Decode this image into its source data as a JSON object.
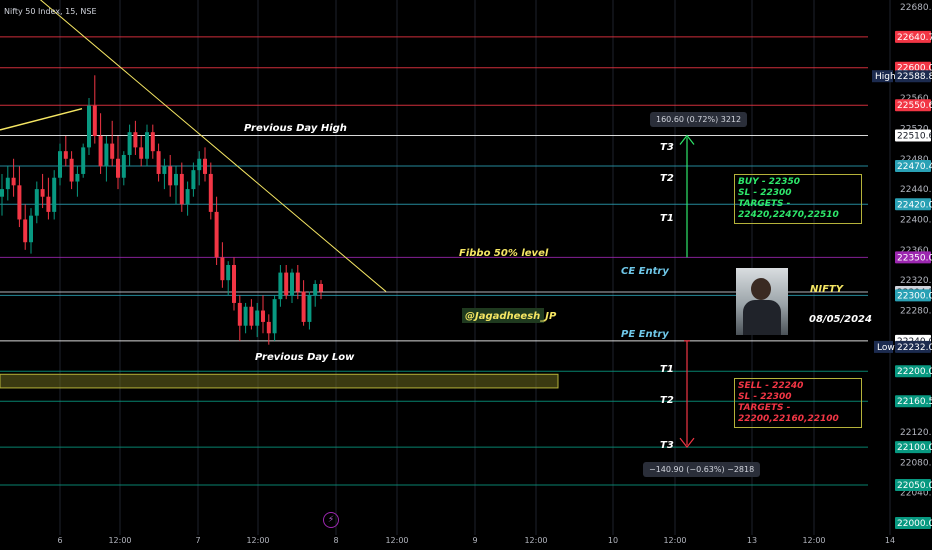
{
  "chart_data": {
    "type": "candlestick",
    "title": "Nifty 50 Index, 15, NSE",
    "y_ticks": [
      "22680.00",
      "22560.00",
      "22520.00",
      "22480.00",
      "22440.00",
      "22400.00",
      "22360.00",
      "22320.00",
      "22280.00",
      "22240.00",
      "22120.00",
      "22080.00",
      "22040.00"
    ],
    "x_ticks": [
      "6",
      "12:00",
      "7",
      "12:00",
      "8",
      "12:00",
      "9",
      "12:00",
      "10",
      "12:00",
      "13",
      "12:00",
      "14"
    ],
    "level_tags": [
      {
        "label": "22640.70",
        "value": 22640.7,
        "color": "#f23645",
        "style": "solid"
      },
      {
        "label": "22600.00",
        "value": 22600,
        "color": "#f23645",
        "style": "solid"
      },
      {
        "label": "22588.80",
        "value": 22588.8,
        "color": "#1c2b4f",
        "style": "none"
      },
      {
        "label": "22550.60",
        "value": 22550.6,
        "color": "#f23645",
        "style": "solid"
      },
      {
        "label": "22510.60",
        "value": 22510.6,
        "color": "#ffffff",
        "style": "solid"
      },
      {
        "label": "22470.40",
        "value": 22470.4,
        "color": "#2aa1b5",
        "style": "solid"
      },
      {
        "label": "22420.00",
        "value": 22420,
        "color": "#2aa1b5",
        "style": "solid"
      },
      {
        "label": "22350.00",
        "value": 22350,
        "color": "#9c27b0",
        "style": "solid"
      },
      {
        "label": "22304.50",
        "value": 22304.5,
        "color": "#d1d4dc",
        "style": "solid"
      },
      {
        "label": "22300.00",
        "value": 22300,
        "color": "#2aa1b5",
        "style": "solid"
      },
      {
        "label": "22240.00",
        "value": 22240,
        "color": "#ffffff",
        "style": "solid"
      },
      {
        "label": "22232.05",
        "value": 22232.05,
        "color": "#1c2b4f",
        "style": "none"
      },
      {
        "label": "22200.00",
        "value": 22200,
        "color": "#089981",
        "style": "solid"
      },
      {
        "label": "22160.50",
        "value": 22160.5,
        "color": "#089981",
        "style": "solid"
      },
      {
        "label": "22100.05",
        "value": 22100.05,
        "color": "#089981",
        "style": "solid"
      },
      {
        "label": "22050.00",
        "value": 22050,
        "color": "#089981",
        "style": "solid"
      },
      {
        "label": "22000.00",
        "value": 22000,
        "color": "#089981",
        "style": "none"
      }
    ],
    "high_label": "High",
    "low_label": "Low",
    "candles": [
      [
        22430,
        22460,
        22405,
        22440
      ],
      [
        22440,
        22470,
        22425,
        22455
      ],
      [
        22455,
        22480,
        22430,
        22445
      ],
      [
        22445,
        22470,
        22390,
        22400
      ],
      [
        22400,
        22420,
        22360,
        22370
      ],
      [
        22370,
        22415,
        22355,
        22405
      ],
      [
        22405,
        22450,
        22395,
        22440
      ],
      [
        22440,
        22460,
        22415,
        22430
      ],
      [
        22430,
        22455,
        22400,
        22410
      ],
      [
        22410,
        22465,
        22400,
        22455
      ],
      [
        22455,
        22500,
        22445,
        22490
      ],
      [
        22490,
        22510,
        22470,
        22480
      ],
      [
        22480,
        22490,
        22440,
        22450
      ],
      [
        22450,
        22470,
        22430,
        22460
      ],
      [
        22460,
        22500,
        22455,
        22495
      ],
      [
        22495,
        22560,
        22485,
        22550
      ],
      [
        22550,
        22590,
        22500,
        22510
      ],
      [
        22510,
        22540,
        22460,
        22470
      ],
      [
        22470,
        22510,
        22450,
        22500
      ],
      [
        22500,
        22530,
        22470,
        22480
      ],
      [
        22480,
        22510,
        22440,
        22455
      ],
      [
        22455,
        22490,
        22445,
        22485
      ],
      [
        22485,
        22525,
        22470,
        22515
      ],
      [
        22515,
        22530,
        22485,
        22495
      ],
      [
        22495,
        22510,
        22470,
        22480
      ],
      [
        22480,
        22525,
        22470,
        22515
      ],
      [
        22515,
        22525,
        22480,
        22490
      ],
      [
        22490,
        22500,
        22450,
        22460
      ],
      [
        22460,
        22480,
        22440,
        22470
      ],
      [
        22470,
        22485,
        22430,
        22445
      ],
      [
        22445,
        22470,
        22420,
        22460
      ],
      [
        22460,
        22475,
        22410,
        22420
      ],
      [
        22420,
        22450,
        22405,
        22440
      ],
      [
        22440,
        22475,
        22430,
        22465
      ],
      [
        22465,
        22490,
        22445,
        22480
      ],
      [
        22480,
        22495,
        22450,
        22460
      ],
      [
        22460,
        22475,
        22400,
        22410
      ],
      [
        22410,
        22430,
        22340,
        22350
      ],
      [
        22350,
        22370,
        22310,
        22320
      ],
      [
        22320,
        22345,
        22300,
        22340
      ],
      [
        22340,
        22350,
        22280,
        22290
      ],
      [
        22290,
        22300,
        22240,
        22260
      ],
      [
        22260,
        22290,
        22250,
        22285
      ],
      [
        22285,
        22295,
        22255,
        22260
      ],
      [
        22260,
        22290,
        22245,
        22280
      ],
      [
        22280,
        22300,
        22250,
        22265
      ],
      [
        22265,
        22275,
        22235,
        22250
      ],
      [
        22250,
        22300,
        22240,
        22295
      ],
      [
        22295,
        22340,
        22285,
        22330
      ],
      [
        22330,
        22340,
        22295,
        22300
      ],
      [
        22300,
        22335,
        22290,
        22330
      ],
      [
        22330,
        22340,
        22295,
        22305
      ],
      [
        22305,
        22320,
        22260,
        22265
      ],
      [
        22265,
        22305,
        22255,
        22300
      ],
      [
        22300,
        22320,
        22285,
        22315
      ],
      [
        22315,
        22320,
        22295,
        22305
      ]
    ],
    "trendline_main": {
      "from": [
        "6",
        22690
      ],
      "to": [
        "8",
        22305
      ],
      "color": "#f5e663"
    },
    "trendline_short": {
      "from": [
        "6",
        22518
      ],
      "to": [
        "6",
        22546
      ],
      "color": "#f5e663"
    },
    "zone": {
      "from": 22196,
      "to": 22178,
      "color": "#6b6a1f"
    },
    "annotations": {
      "prev_day_high": "Previous Day High",
      "prev_day_low": "Previous Day Low",
      "fibbo": "Fibbo 50% level",
      "ce_entry": "CE Entry",
      "pe_entry": "PE Entry",
      "handle": "@Jagadheesh_JP",
      "nifty": "NIFTY",
      "date": "08/05/2024",
      "t3_up": "T3",
      "t2_up": "T2",
      "t1_up": "T1",
      "t1_down": "T1",
      "t2_down": "T2",
      "t3_down": "T3"
    },
    "buy_box": [
      "BUY - 22350",
      "SL - 22300",
      "TARGETS - 22420,22470,22510"
    ],
    "sell_box": [
      "SELL - 22240",
      "SL - 22300",
      "TARGETS - 22200,22160,22100"
    ],
    "measure_up": "160.60 (0.72%) 3212",
    "measure_down": "−140.90 (−0.63%) −2818",
    "colors": {
      "bg": "#000000",
      "up": "#089981",
      "down": "#f23645",
      "grid": "#1e222d"
    }
  }
}
